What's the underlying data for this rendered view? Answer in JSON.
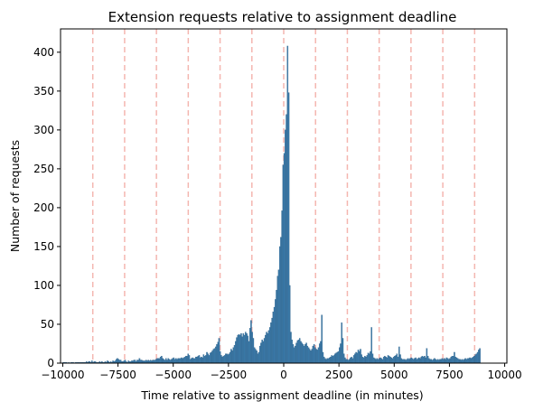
{
  "chart_data": {
    "type": "bar",
    "title": "Extension requests relative to assignment deadline",
    "xlabel": "Time relative to assignment deadline (in minutes)",
    "ylabel": "Number of requests",
    "xlim": [
      -10100,
      10100
    ],
    "ylim": [
      0,
      430
    ],
    "bin_width": 50,
    "xticks": [
      -10000,
      -7500,
      -5000,
      -2500,
      0,
      2500,
      5000,
      7500,
      10000
    ],
    "xtick_labels": [
      "−10000",
      "−7500",
      "−5000",
      "−2500",
      "0",
      "2500",
      "5000",
      "7500",
      "10000"
    ],
    "yticks": [
      0,
      50,
      100,
      150,
      200,
      250,
      300,
      350,
      400
    ],
    "ytick_labels": [
      "0",
      "50",
      "100",
      "150",
      "200",
      "250",
      "300",
      "350",
      "400"
    ],
    "reference_lines_x": [
      -8640,
      -7200,
      -5760,
      -4320,
      -2880,
      -1440,
      0,
      1440,
      2880,
      4320,
      5760,
      7200,
      8640
    ],
    "colors": {
      "bar_fill": "#3b7bab",
      "bar_edge": "#2d5f86",
      "reference_line": "#f4b6b0"
    },
    "bins_x": [
      -10000,
      -9950,
      -9900,
      -9850,
      -9800,
      -9750,
      -9700,
      -9650,
      -9600,
      -9550,
      -9500,
      -9450,
      -9400,
      -9350,
      -9300,
      -9250,
      -9200,
      -9150,
      -9100,
      -9050,
      -9000,
      -8950,
      -8900,
      -8850,
      -8800,
      -8750,
      -8700,
      -8650,
      -8600,
      -8550,
      -8500,
      -8450,
      -8400,
      -8350,
      -8300,
      -8250,
      -8200,
      -8150,
      -8100,
      -8050,
      -8000,
      -7950,
      -7900,
      -7850,
      -7800,
      -7750,
      -7700,
      -7650,
      -7600,
      -7550,
      -7500,
      -7450,
      -7400,
      -7350,
      -7300,
      -7250,
      -7200,
      -7150,
      -7100,
      -7050,
      -7000,
      -6950,
      -6900,
      -6850,
      -6800,
      -6750,
      -6700,
      -6650,
      -6600,
      -6550,
      -6500,
      -6450,
      -6400,
      -6350,
      -6300,
      -6250,
      -6200,
      -6150,
      -6100,
      -6050,
      -6000,
      -5950,
      -5900,
      -5850,
      -5800,
      -5750,
      -5700,
      -5650,
      -5600,
      -5550,
      -5500,
      -5450,
      -5400,
      -5350,
      -5300,
      -5250,
      -5200,
      -5150,
      -5100,
      -5050,
      -5000,
      -4950,
      -4900,
      -4850,
      -4800,
      -4750,
      -4700,
      -4650,
      -4600,
      -4550,
      -4500,
      -4450,
      -4400,
      -4350,
      -4300,
      -4250,
      -4200,
      -4150,
      -4100,
      -4050,
      -4000,
      -3950,
      -3900,
      -3850,
      -3800,
      -3750,
      -3700,
      -3650,
      -3600,
      -3550,
      -3500,
      -3450,
      -3400,
      -3350,
      -3300,
      -3250,
      -3200,
      -3150,
      -3100,
      -3050,
      -3000,
      -2950,
      -2900,
      -2850,
      -2800,
      -2750,
      -2700,
      -2650,
      -2600,
      -2550,
      -2500,
      -2450,
      -2400,
      -2350,
      -2300,
      -2250,
      -2200,
      -2150,
      -2100,
      -2050,
      -2000,
      -1950,
      -1900,
      -1850,
      -1800,
      -1750,
      -1700,
      -1650,
      -1600,
      -1550,
      -1500,
      -1450,
      -1400,
      -1350,
      -1300,
      -1250,
      -1200,
      -1150,
      -1100,
      -1050,
      -1000,
      -950,
      -900,
      -850,
      -800,
      -750,
      -700,
      -650,
      -600,
      -550,
      -500,
      -450,
      -400,
      -350,
      -300,
      -250,
      -200,
      -150,
      -100,
      -50,
      0,
      50,
      100,
      150,
      200,
      250,
      300,
      350,
      400,
      450,
      500,
      550,
      600,
      650,
      700,
      750,
      800,
      850,
      900,
      950,
      1000,
      1050,
      1100,
      1150,
      1200,
      1250,
      1300,
      1350,
      1400,
      1450,
      1500,
      1550,
      1600,
      1650,
      1700,
      1750,
      1800,
      1850,
      1900,
      1950,
      2000,
      2050,
      2100,
      2150,
      2200,
      2250,
      2300,
      2350,
      2400,
      2450,
      2500,
      2550,
      2600,
      2650,
      2700,
      2750,
      2800,
      2850,
      2900,
      2950,
      3000,
      3050,
      3100,
      3150,
      3200,
      3250,
      3300,
      3350,
      3400,
      3450,
      3500,
      3550,
      3600,
      3650,
      3700,
      3750,
      3800,
      3850,
      3900,
      3950,
      4000,
      4050,
      4100,
      4150,
      4200,
      4250,
      4300,
      4350,
      4400,
      4450,
      4500,
      4550,
      4600,
      4650,
      4700,
      4750,
      4800,
      4850,
      4900,
      4950,
      5000,
      5050,
      5100,
      5150,
      5200,
      5250,
      5300,
      5350,
      5400,
      5450,
      5500,
      5550,
      5600,
      5650,
      5700,
      5750,
      5800,
      5850,
      5900,
      5950,
      6000,
      6050,
      6100,
      6150,
      6200,
      6250,
      6300,
      6350,
      6400,
      6450,
      6500,
      6550,
      6600,
      6650,
      6700,
      6750,
      6800,
      6850,
      6900,
      6950,
      7000,
      7050,
      7100,
      7150,
      7200,
      7250,
      7300,
      7350,
      7400,
      7450,
      7500,
      7550,
      7600,
      7650,
      7700,
      7750,
      7800,
      7850,
      7900,
      7950,
      8000,
      8050,
      8100,
      8150,
      8200,
      8250,
      8300,
      8350,
      8400,
      8450,
      8500,
      8550,
      8600,
      8650,
      8700,
      8750,
      8800,
      8850,
      8900,
      8950,
      9000,
      9050,
      9100,
      9150,
      9200,
      9250,
      9300,
      9350,
      9400,
      9450,
      9500,
      9550,
      9600,
      9650,
      9700,
      9750,
      9800,
      9850,
      9900,
      9950
    ],
    "bins_y": [
      1,
      1,
      1,
      1,
      0,
      1,
      0,
      1,
      1,
      1,
      0,
      1,
      1,
      1,
      1,
      1,
      1,
      1,
      1,
      1,
      1,
      2,
      1,
      2,
      2,
      1,
      3,
      1,
      2,
      2,
      1,
      1,
      1,
      2,
      1,
      2,
      1,
      1,
      2,
      1,
      3,
      2,
      1,
      2,
      1,
      3,
      2,
      3,
      5,
      6,
      5,
      4,
      4,
      2,
      2,
      3,
      4,
      2,
      1,
      3,
      2,
      2,
      3,
      3,
      4,
      4,
      2,
      4,
      4,
      6,
      4,
      4,
      3,
      3,
      3,
      4,
      3,
      4,
      3,
      4,
      3,
      4,
      4,
      4,
      5,
      6,
      6,
      6,
      8,
      9,
      6,
      5,
      4,
      6,
      4,
      6,
      5,
      4,
      5,
      6,
      7,
      5,
      6,
      5,
      6,
      6,
      6,
      7,
      6,
      7,
      8,
      9,
      9,
      12,
      10,
      5,
      6,
      7,
      6,
      6,
      8,
      8,
      9,
      10,
      7,
      8,
      7,
      11,
      9,
      10,
      14,
      12,
      10,
      13,
      14,
      16,
      18,
      19,
      21,
      24,
      27,
      32,
      15,
      10,
      8,
      9,
      10,
      12,
      12,
      11,
      12,
      14,
      18,
      16,
      20,
      23,
      28,
      33,
      36,
      37,
      36,
      38,
      34,
      38,
      36,
      40,
      38,
      35,
      28,
      45,
      55,
      40,
      32,
      20,
      18,
      16,
      12,
      14,
      22,
      26,
      30,
      28,
      32,
      36,
      40,
      38,
      42,
      46,
      52,
      58,
      66,
      72,
      82,
      94,
      112,
      120,
      150,
      162,
      196,
      255,
      270,
      300,
      320,
      408,
      348,
      100,
      40,
      30,
      24,
      20,
      22,
      26,
      29,
      30,
      32,
      28,
      26,
      24,
      22,
      24,
      26,
      22,
      20,
      18,
      16,
      18,
      22,
      24,
      20,
      18,
      17,
      20,
      25,
      28,
      62,
      14,
      8,
      6,
      5,
      6,
      6,
      7,
      8,
      10,
      9,
      10,
      12,
      13,
      14,
      15,
      20,
      25,
      52,
      32,
      12,
      7,
      5,
      5,
      4,
      5,
      7,
      8,
      6,
      10,
      12,
      14,
      13,
      17,
      15,
      18,
      11,
      8,
      7,
      9,
      8,
      10,
      13,
      12,
      15,
      46,
      12,
      7,
      6,
      5,
      6,
      5,
      6,
      7,
      6,
      5,
      8,
      9,
      8,
      7,
      10,
      9,
      8,
      7,
      6,
      8,
      9,
      10,
      12,
      8,
      21,
      11,
      6,
      5,
      5,
      5,
      4,
      5,
      6,
      5,
      6,
      7,
      6,
      5,
      6,
      7,
      5,
      6,
      7,
      6,
      8,
      9,
      8,
      9,
      7,
      19,
      9,
      6,
      5,
      5,
      4,
      5,
      6,
      5,
      4,
      5,
      4,
      5,
      5,
      6,
      5,
      6,
      5,
      7,
      6,
      5,
      6,
      8,
      9,
      9,
      14,
      8,
      7,
      6,
      5,
      5,
      4,
      5,
      4,
      5,
      6,
      5,
      6,
      6,
      7,
      6,
      7,
      8,
      9,
      11,
      12,
      14,
      17,
      19
    ]
  }
}
